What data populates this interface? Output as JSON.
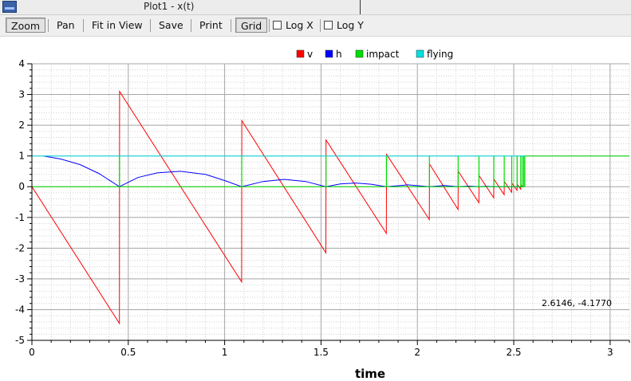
{
  "window": {
    "title": "Plot1 - x(t)"
  },
  "toolbar": {
    "zoom": "Zoom",
    "pan": "Pan",
    "fit": "Fit in View",
    "save": "Save",
    "print": "Print",
    "grid": "Grid",
    "logx": "Log X",
    "logy": "Log Y"
  },
  "coord_readout": "2.6146, -4.1770",
  "chart_data": {
    "type": "line",
    "xlabel": "time",
    "ylabel": "",
    "xlim": [
      0,
      3.1
    ],
    "ylim": [
      -5,
      4
    ],
    "grid": true,
    "legend": "top-center",
    "x_ticks": [
      "0",
      "0.5",
      "1",
      "1.5",
      "2",
      "2.5",
      "3"
    ],
    "y_ticks": [
      "4",
      "3",
      "2",
      "1",
      "0",
      "-1",
      "-2",
      "-3",
      "-4",
      "-5"
    ],
    "series": [
      {
        "name": "v",
        "color": "#ff0000",
        "x": [
          0,
          0.454,
          0.455,
          1.088,
          1.089,
          1.525,
          1.526,
          1.839,
          1.84,
          2.062,
          2.063,
          2.211,
          2.212,
          2.319,
          2.32,
          2.396,
          2.397,
          2.45,
          2.451,
          2.489,
          2.49,
          2.517,
          2.518,
          2.536,
          2.537,
          2.55
        ],
        "y": [
          0,
          -4.45,
          3.1,
          -3.1,
          2.15,
          -2.15,
          1.52,
          -1.52,
          1.05,
          -1.07,
          0.74,
          -0.74,
          0.5,
          -0.52,
          0.36,
          -0.36,
          0.25,
          -0.26,
          0.17,
          -0.18,
          0.12,
          -0.12,
          0.08,
          -0.08,
          0.05,
          0
        ]
      },
      {
        "name": "h",
        "color": "#0000ff",
        "x": [
          0.06,
          0.15,
          0.25,
          0.35,
          0.454,
          0.55,
          0.65,
          0.77,
          0.9,
          1.0,
          1.088,
          1.2,
          1.31,
          1.42,
          1.525,
          1.6,
          1.68,
          1.76,
          1.839,
          1.95,
          2.062,
          2.14,
          2.211,
          2.27,
          2.319,
          2.36,
          2.396,
          2.45,
          2.55
        ],
        "y": [
          1.0,
          0.9,
          0.72,
          0.42,
          0.0,
          0.3,
          0.45,
          0.5,
          0.4,
          0.2,
          0.0,
          0.17,
          0.24,
          0.17,
          0.0,
          0.09,
          0.12,
          0.08,
          0.0,
          0.06,
          0.0,
          0.04,
          0.0,
          0.02,
          0.0,
          0.01,
          0.0,
          0.0,
          0.0
        ]
      },
      {
        "name": "impact",
        "color": "#00dd00",
        "x": [
          0,
          0.454,
          0.454,
          0.455,
          0.455,
          1.088,
          1.088,
          1.089,
          1.089,
          1.525,
          1.525,
          1.526,
          1.526,
          1.839,
          1.839,
          1.84,
          1.84,
          2.062,
          2.062,
          2.063,
          2.063,
          2.211,
          2.211,
          2.212,
          2.212,
          2.319,
          2.319,
          2.32,
          2.32,
          2.396,
          2.396,
          2.397,
          2.397,
          2.45,
          2.45,
          2.451,
          2.451,
          2.489,
          2.489,
          2.49,
          2.49,
          2.517,
          2.517,
          2.518,
          2.518,
          2.536,
          2.536,
          2.537,
          2.537,
          2.545,
          2.545,
          2.546,
          2.546,
          2.552,
          2.552,
          2.553,
          2.553,
          2.558,
          2.558,
          2.559,
          2.559,
          3.1
        ],
        "y": [
          0,
          0,
          1,
          1,
          0,
          0,
          1,
          1,
          0,
          0,
          1,
          1,
          0,
          0,
          1,
          1,
          0,
          0,
          1,
          1,
          0,
          0,
          1,
          1,
          0,
          0,
          1,
          1,
          0,
          0,
          1,
          1,
          0,
          0,
          1,
          1,
          0,
          0,
          1,
          1,
          0,
          0,
          1,
          1,
          0,
          0,
          1,
          1,
          0,
          0,
          1,
          1,
          0,
          0,
          1,
          1,
          0,
          0,
          1,
          1,
          1,
          1
        ]
      },
      {
        "name": "flying",
        "color": "#00e0e0",
        "x": [
          0,
          2.56
        ],
        "y": [
          1,
          1
        ]
      }
    ]
  }
}
